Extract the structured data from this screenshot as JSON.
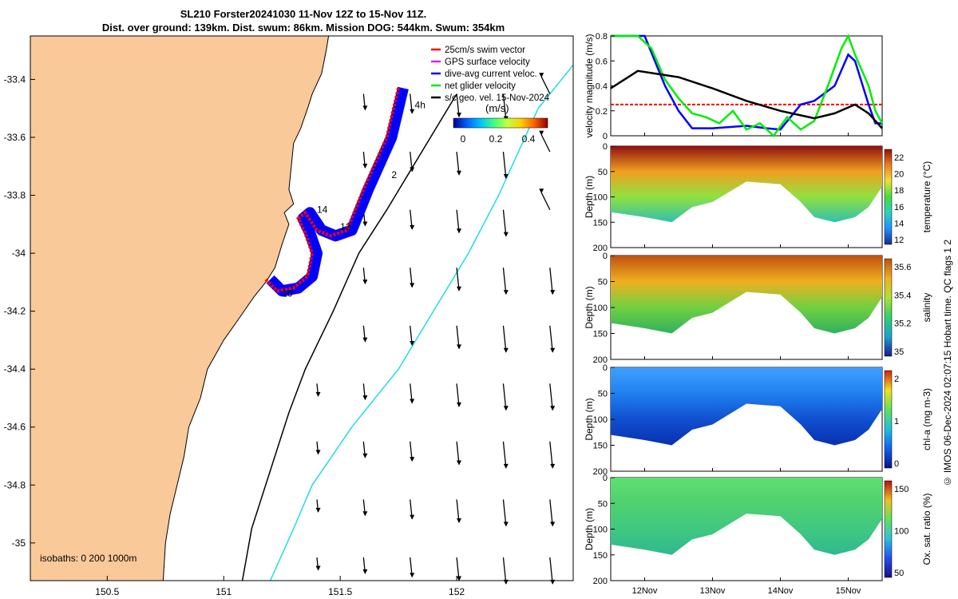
{
  "header": {
    "line1": "SL210 Forster20241030 11-Nov 12Z to 15-Nov 11Z.",
    "line2": "Dist. over ground: 139km. Dist. swum: 86km. Mission DOG: 544km. Swum: 354km"
  },
  "credit": "© IMOS 06-Dec-2024 02:07:15 Hobart time. QC flags 1  2",
  "colors": {
    "land": "#fac999",
    "swim": "#ff0000",
    "track": "#0000ff",
    "net": "#00ee00",
    "geo": "#000000",
    "isobath200": "#000000",
    "isobath1000": "#22dddd"
  },
  "chart_data": [
    {
      "type": "map",
      "xticks": [
        150.5,
        151,
        151.5,
        152
      ],
      "yticks": [
        -33.4,
        -33.6,
        -33.8,
        -34,
        -34.2,
        -34.4,
        -34.6,
        -34.8,
        -35
      ],
      "xlim": [
        150.17,
        152.5
      ],
      "ylim": [
        -35.13,
        -33.25
      ],
      "legend": [
        {
          "label": "25cm/s swim vector",
          "color": "#ff0000"
        },
        {
          "label": "GPS surface velocity",
          "color": "#dd22dd"
        },
        {
          "label": "dive-avg current veloc.",
          "color": "#0000ff"
        },
        {
          "label": "net glider velocity",
          "color": "#00ee00"
        },
        {
          "label": "s/c geo. vel. 15-Nov-2024",
          "color": "#000000"
        }
      ],
      "colorbar": {
        "label": "(m/s)",
        "ticks": [
          "0",
          "0.2",
          "0.4"
        ]
      },
      "isobath_text": "isobaths: 0   200  1000m",
      "track_labels": [
        "4h",
        "2",
        "14",
        "12",
        "10"
      ],
      "track_path": [
        [
          151.77,
          -33.43
        ],
        [
          151.72,
          -33.6
        ],
        [
          151.62,
          -33.78
        ],
        [
          151.55,
          -33.92
        ],
        [
          151.48,
          -33.94
        ],
        [
          151.42,
          -33.92
        ],
        [
          151.37,
          -33.86
        ],
        [
          151.34,
          -33.88
        ],
        [
          151.37,
          -33.93
        ],
        [
          151.4,
          -34.0
        ],
        [
          151.38,
          -34.08
        ],
        [
          151.32,
          -34.12
        ],
        [
          151.25,
          -34.13
        ],
        [
          151.2,
          -34.09
        ]
      ]
    },
    {
      "type": "line",
      "ylabel": "velocity magnitude (m/s)",
      "ylim": [
        0,
        0.8
      ],
      "yticks": [
        "0",
        "0.2",
        "0.4",
        "0.6",
        "0.8"
      ],
      "x_unit": "days since 11-Nov 12Z",
      "xlim": [
        0,
        4
      ],
      "series": [
        {
          "name": "swim",
          "color": "#ff0000",
          "values": [
            [
              0,
              0.25
            ],
            [
              4,
              0.25
            ]
          ]
        },
        {
          "name": "current",
          "color": "#0000ff",
          "values": [
            [
              0,
              0.8
            ],
            [
              0.5,
              0.8
            ],
            [
              0.8,
              0.4
            ],
            [
              1,
              0.2
            ],
            [
              1.2,
              0.06
            ],
            [
              1.5,
              0.06
            ],
            [
              2,
              0.08
            ],
            [
              2.3,
              0.06
            ],
            [
              2.5,
              0.05
            ],
            [
              2.8,
              0.25
            ],
            [
              3,
              0.28
            ],
            [
              3.3,
              0.4
            ],
            [
              3.5,
              0.65
            ],
            [
              3.6,
              0.6
            ],
            [
              3.8,
              0.25
            ],
            [
              3.9,
              0.1
            ],
            [
              4,
              0.1
            ]
          ]
        },
        {
          "name": "net",
          "color": "#00ee00",
          "values": [
            [
              0,
              0.8
            ],
            [
              0.4,
              0.8
            ],
            [
              0.6,
              0.7
            ],
            [
              0.8,
              0.45
            ],
            [
              1,
              0.3
            ],
            [
              1.2,
              0.18
            ],
            [
              1.4,
              0.15
            ],
            [
              1.6,
              0.1
            ],
            [
              1.8,
              0.2
            ],
            [
              2,
              0.05
            ],
            [
              2.2,
              0.1
            ],
            [
              2.4,
              0.0
            ],
            [
              2.6,
              0.15
            ],
            [
              2.8,
              0.05
            ],
            [
              3,
              0.12
            ],
            [
              3.2,
              0.4
            ],
            [
              3.4,
              0.7
            ],
            [
              3.5,
              0.8
            ],
            [
              3.6,
              0.65
            ],
            [
              3.8,
              0.4
            ],
            [
              3.9,
              0.2
            ],
            [
              4,
              0.1
            ]
          ]
        },
        {
          "name": "geo",
          "color": "#000000",
          "values": [
            [
              0,
              0.38
            ],
            [
              0.4,
              0.52
            ],
            [
              1,
              0.47
            ],
            [
              1.5,
              0.38
            ],
            [
              2,
              0.28
            ],
            [
              2.5,
              0.2
            ],
            [
              3,
              0.14
            ],
            [
              3.3,
              0.18
            ],
            [
              3.6,
              0.25
            ],
            [
              3.8,
              0.18
            ],
            [
              4,
              0.06
            ]
          ]
        }
      ]
    },
    {
      "type": "heatmap",
      "ylabel": "Depth (m)",
      "clabel": "temperature (°C)",
      "cticks": [
        "12",
        "14",
        "16",
        "18",
        "20",
        "22"
      ],
      "ylim": [
        0,
        200
      ],
      "yticks": [
        "0",
        "50",
        "100",
        "150",
        "200"
      ]
    },
    {
      "type": "heatmap",
      "ylabel": "Depth (m)",
      "clabel": "salinity",
      "cticks": [
        "35",
        "35.2",
        "35.4",
        "35.6"
      ],
      "ylim": [
        0,
        200
      ],
      "yticks": [
        "0",
        "50",
        "100",
        "150",
        "200"
      ]
    },
    {
      "type": "heatmap",
      "ylabel": "Depth (m)",
      "clabel": "chl-a (mg m-3)",
      "cticks": [
        "0",
        "1",
        "2"
      ],
      "ylim": [
        0,
        200
      ],
      "yticks": [
        "0",
        "50",
        "100",
        "150",
        "200"
      ]
    },
    {
      "type": "heatmap",
      "ylabel": "Depth (m)",
      "clabel": "Ox. sat. ratio (%)",
      "cticks": [
        "50",
        "100",
        "150"
      ],
      "ylim": [
        0,
        200
      ],
      "yticks": [
        "0",
        "50",
        "100",
        "150",
        "200"
      ],
      "xticks": [
        "12Nov",
        "13Nov",
        "14Nov",
        "15Nov"
      ]
    }
  ]
}
